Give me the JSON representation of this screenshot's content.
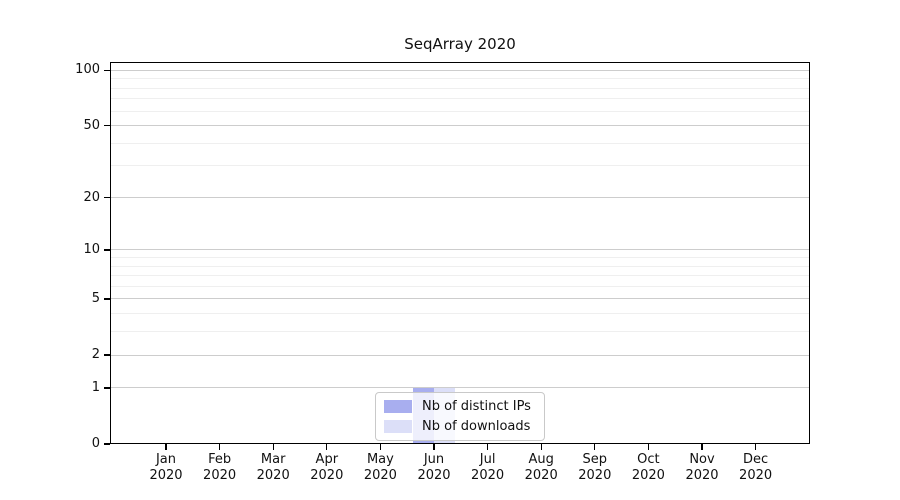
{
  "chart_data": {
    "type": "bar",
    "title": "SeqArray 2020",
    "categories": [
      "Jan 2020",
      "Feb 2020",
      "Mar 2020",
      "Apr 2020",
      "May 2020",
      "Jun 2020",
      "Jul 2020",
      "Aug 2020",
      "Sep 2020",
      "Oct 2020",
      "Nov 2020",
      "Dec 2020"
    ],
    "series": [
      {
        "name": "Nb of distinct IPs",
        "color": "#a8aeef",
        "values": [
          0,
          0,
          0,
          0,
          0,
          1,
          0,
          0,
          0,
          0,
          0,
          0
        ]
      },
      {
        "name": "Nb of downloads",
        "color": "#dcdff8",
        "values": [
          0,
          0,
          0,
          0,
          0,
          1,
          0,
          0,
          0,
          0,
          0,
          0
        ]
      }
    ],
    "xlabel": "",
    "ylabel": "",
    "yscale": "log1p",
    "ylim": [
      0,
      111
    ],
    "yticks": [
      0,
      1,
      2,
      5,
      10,
      20,
      50,
      100
    ],
    "yticks_minor": [
      3,
      4,
      6,
      7,
      8,
      9,
      30,
      40,
      60,
      70,
      80,
      90
    ],
    "grid": "horizontal",
    "legend_position": "lower center",
    "colors": {
      "background": "#ffffff",
      "axis": "#000000",
      "grid_major": "#cdcdcd",
      "grid_minor": "#efefef",
      "text": "#111111",
      "legend_border": "#c9c9c9"
    }
  }
}
